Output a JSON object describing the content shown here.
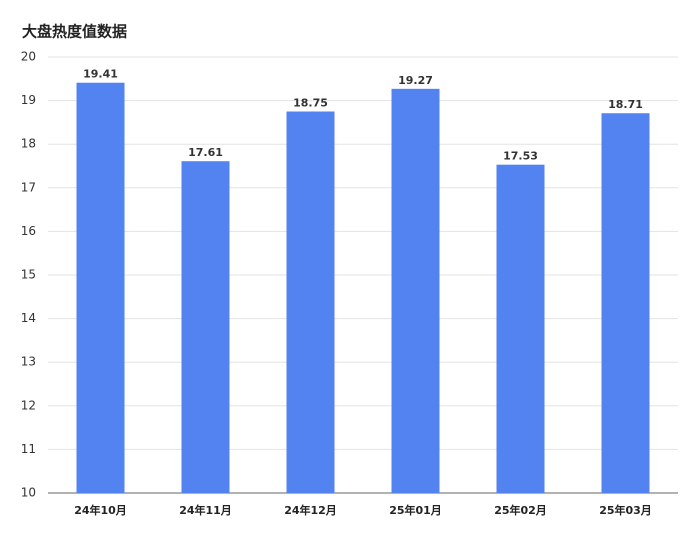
{
  "chart_data": {
    "type": "bar",
    "title": "大盘热度值数据",
    "categories": [
      "24年10月",
      "24年11月",
      "24年12月",
      "25年01月",
      "25年02月",
      "25年03月"
    ],
    "values": [
      19.41,
      17.61,
      18.75,
      19.27,
      17.53,
      18.71
    ],
    "color": "#5383f1",
    "ylim": [
      10,
      20
    ],
    "yticks": [
      10,
      11,
      12,
      13,
      14,
      15,
      16,
      17,
      18,
      19,
      20
    ],
    "grid": true
  }
}
